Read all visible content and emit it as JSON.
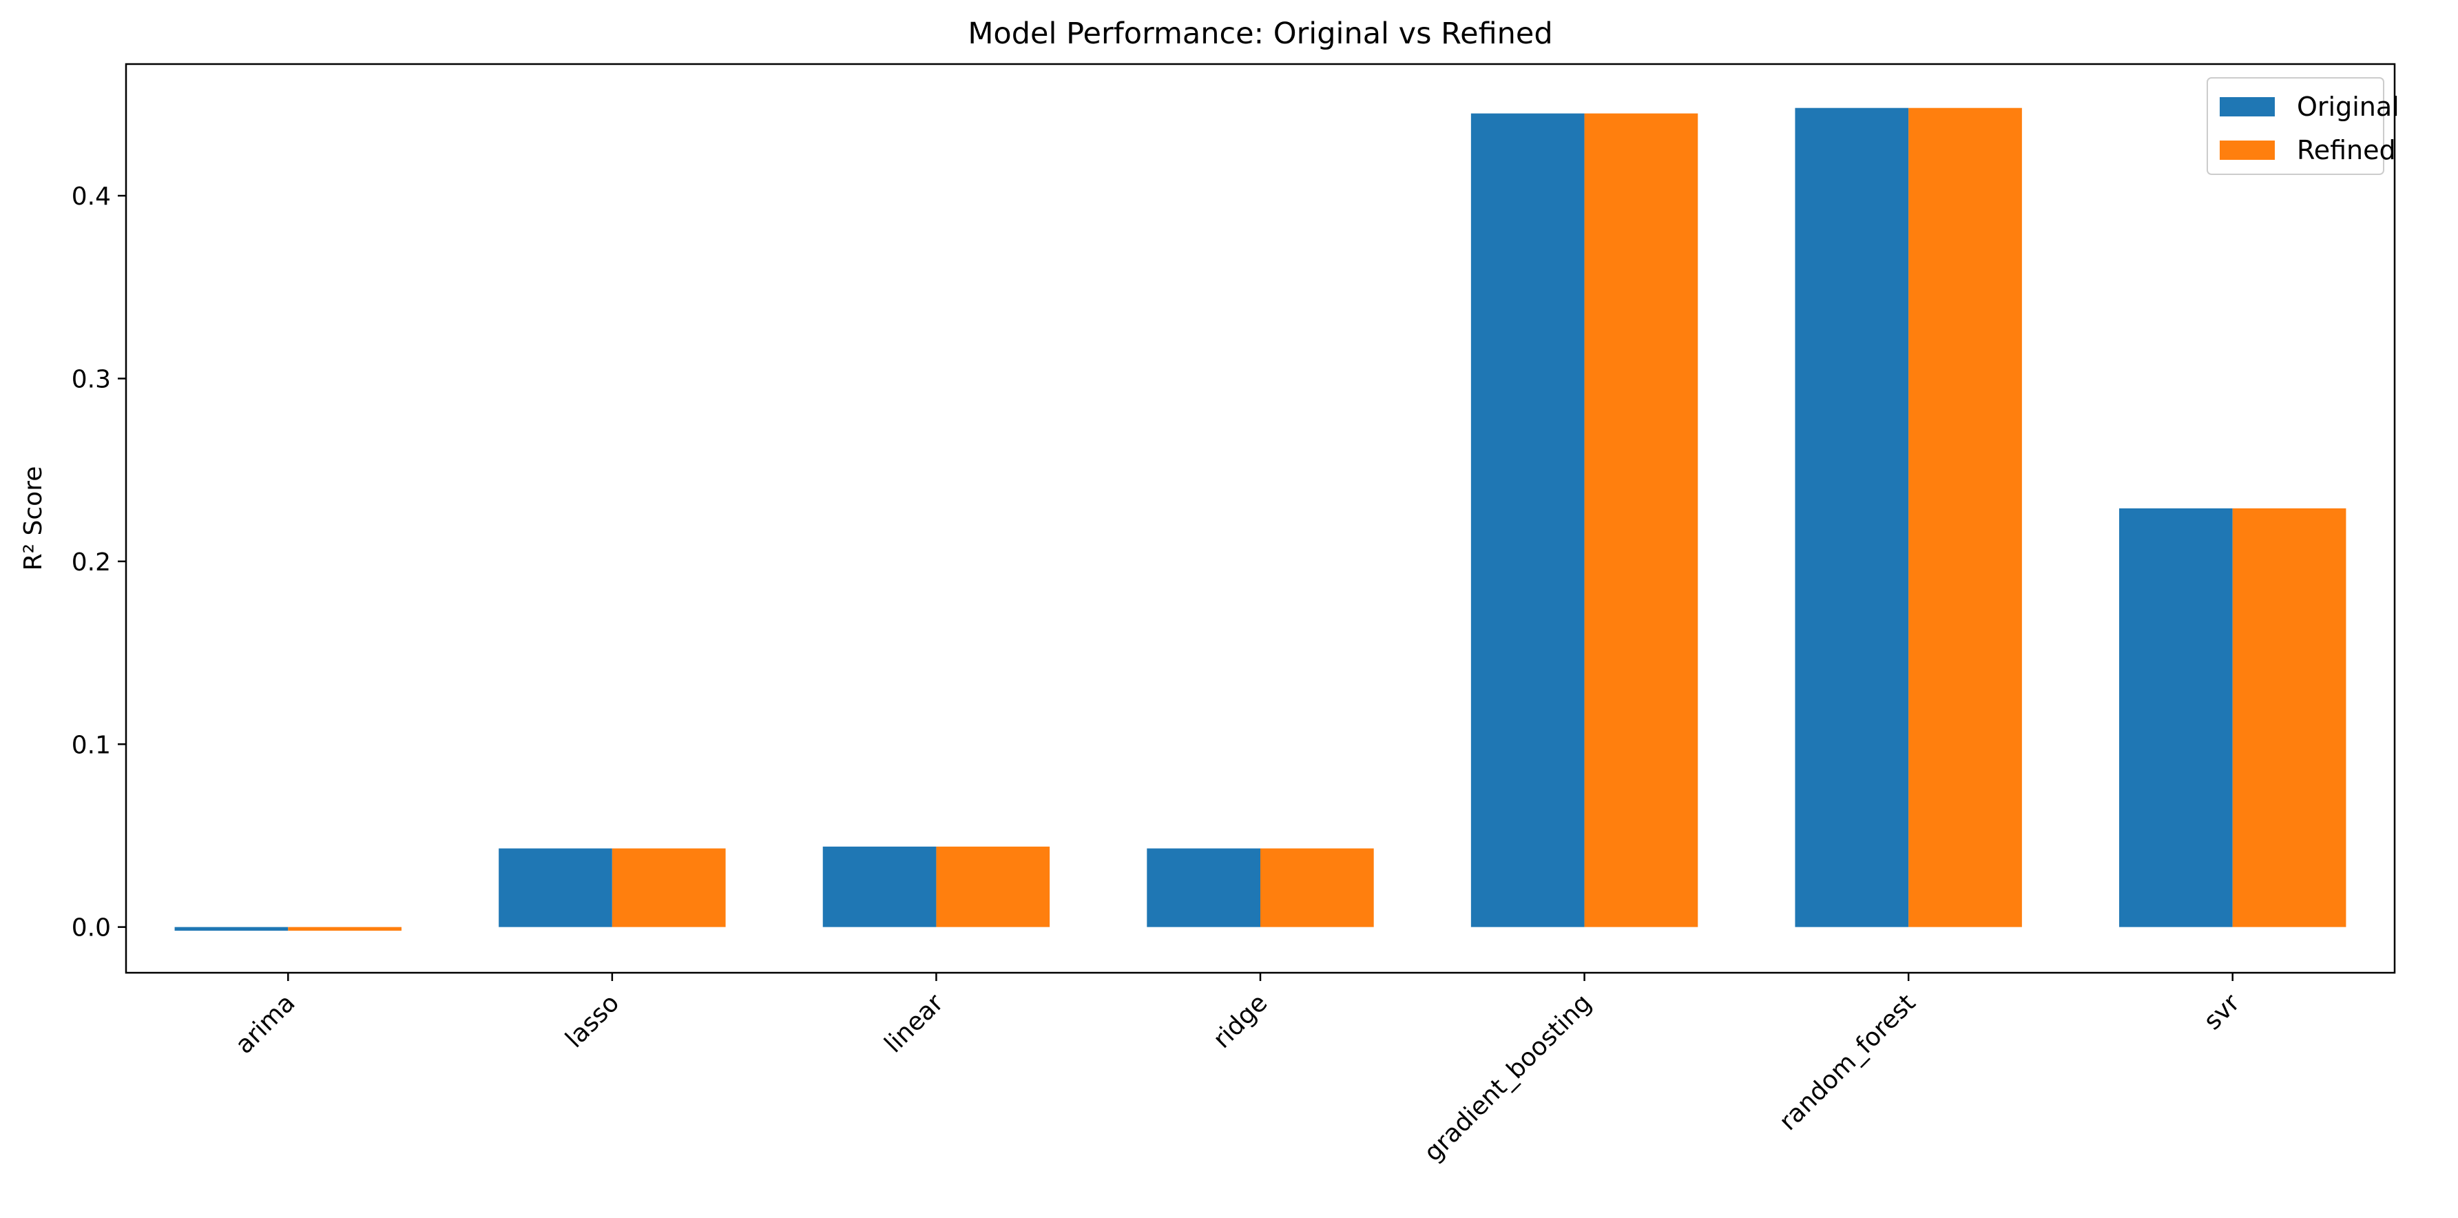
{
  "chart_data": {
    "type": "bar",
    "title": "Model Performance: Original vs Refined",
    "xlabel": "",
    "ylabel": "R² Score",
    "categories": [
      "arima",
      "lasso",
      "linear",
      "ridge",
      "gradient_boosting",
      "random_forest",
      "svr"
    ],
    "series": [
      {
        "name": "Original",
        "color": "#1f77b4",
        "values": [
          -0.002,
          0.043,
          0.044,
          0.043,
          0.445,
          0.448,
          0.229
        ]
      },
      {
        "name": "Refined",
        "color": "#ff7f0e",
        "values": [
          -0.002,
          0.043,
          0.044,
          0.043,
          0.445,
          0.448,
          0.229
        ]
      }
    ],
    "ylim": [
      -0.025,
      0.472
    ],
    "yticks": [
      0.0,
      0.1,
      0.2,
      0.3,
      0.4
    ],
    "ytick_labels": [
      "0.0",
      "0.1",
      "0.2",
      "0.3",
      "0.4"
    ],
    "grid": false,
    "legend_position": "top-right",
    "xtick_rotation": 45
  }
}
